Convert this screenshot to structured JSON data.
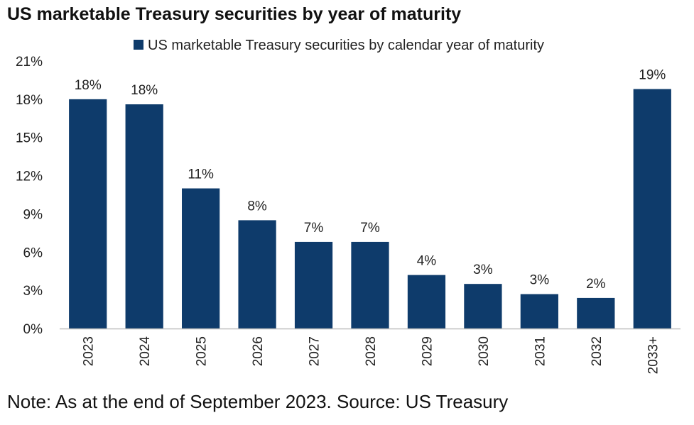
{
  "title": "US marketable Treasury securities by year of maturity",
  "note": "Note: As at the end of September 2023. Source: US Treasury",
  "colors": {
    "bar": "#0e3b6b",
    "axis": "#bfbfbf"
  },
  "chart_data": {
    "type": "bar",
    "title": "US marketable Treasury securities by year of maturity",
    "xlabel": "",
    "ylabel": "",
    "categories": [
      "2023",
      "2024",
      "2025",
      "2026",
      "2027",
      "2028",
      "2029",
      "2030",
      "2031",
      "2032",
      "2033+"
    ],
    "series": [
      {
        "name": "US marketable Treasury securities by calendar year of maturity",
        "values": [
          18.0,
          17.6,
          11.0,
          8.5,
          6.8,
          6.8,
          4.2,
          3.5,
          2.7,
          2.4,
          18.8
        ],
        "labels": [
          "18%",
          "18%",
          "11%",
          "8%",
          "7%",
          "7%",
          "4%",
          "3%",
          "3%",
          "2%",
          "19%"
        ]
      }
    ],
    "yticks": [
      0,
      3,
      6,
      9,
      12,
      15,
      18,
      21
    ],
    "ytick_labels": [
      "0%",
      "3%",
      "6%",
      "9%",
      "12%",
      "15%",
      "18%",
      "21%"
    ],
    "ylim": [
      0,
      21
    ],
    "grid": false,
    "legend_position": "top"
  }
}
